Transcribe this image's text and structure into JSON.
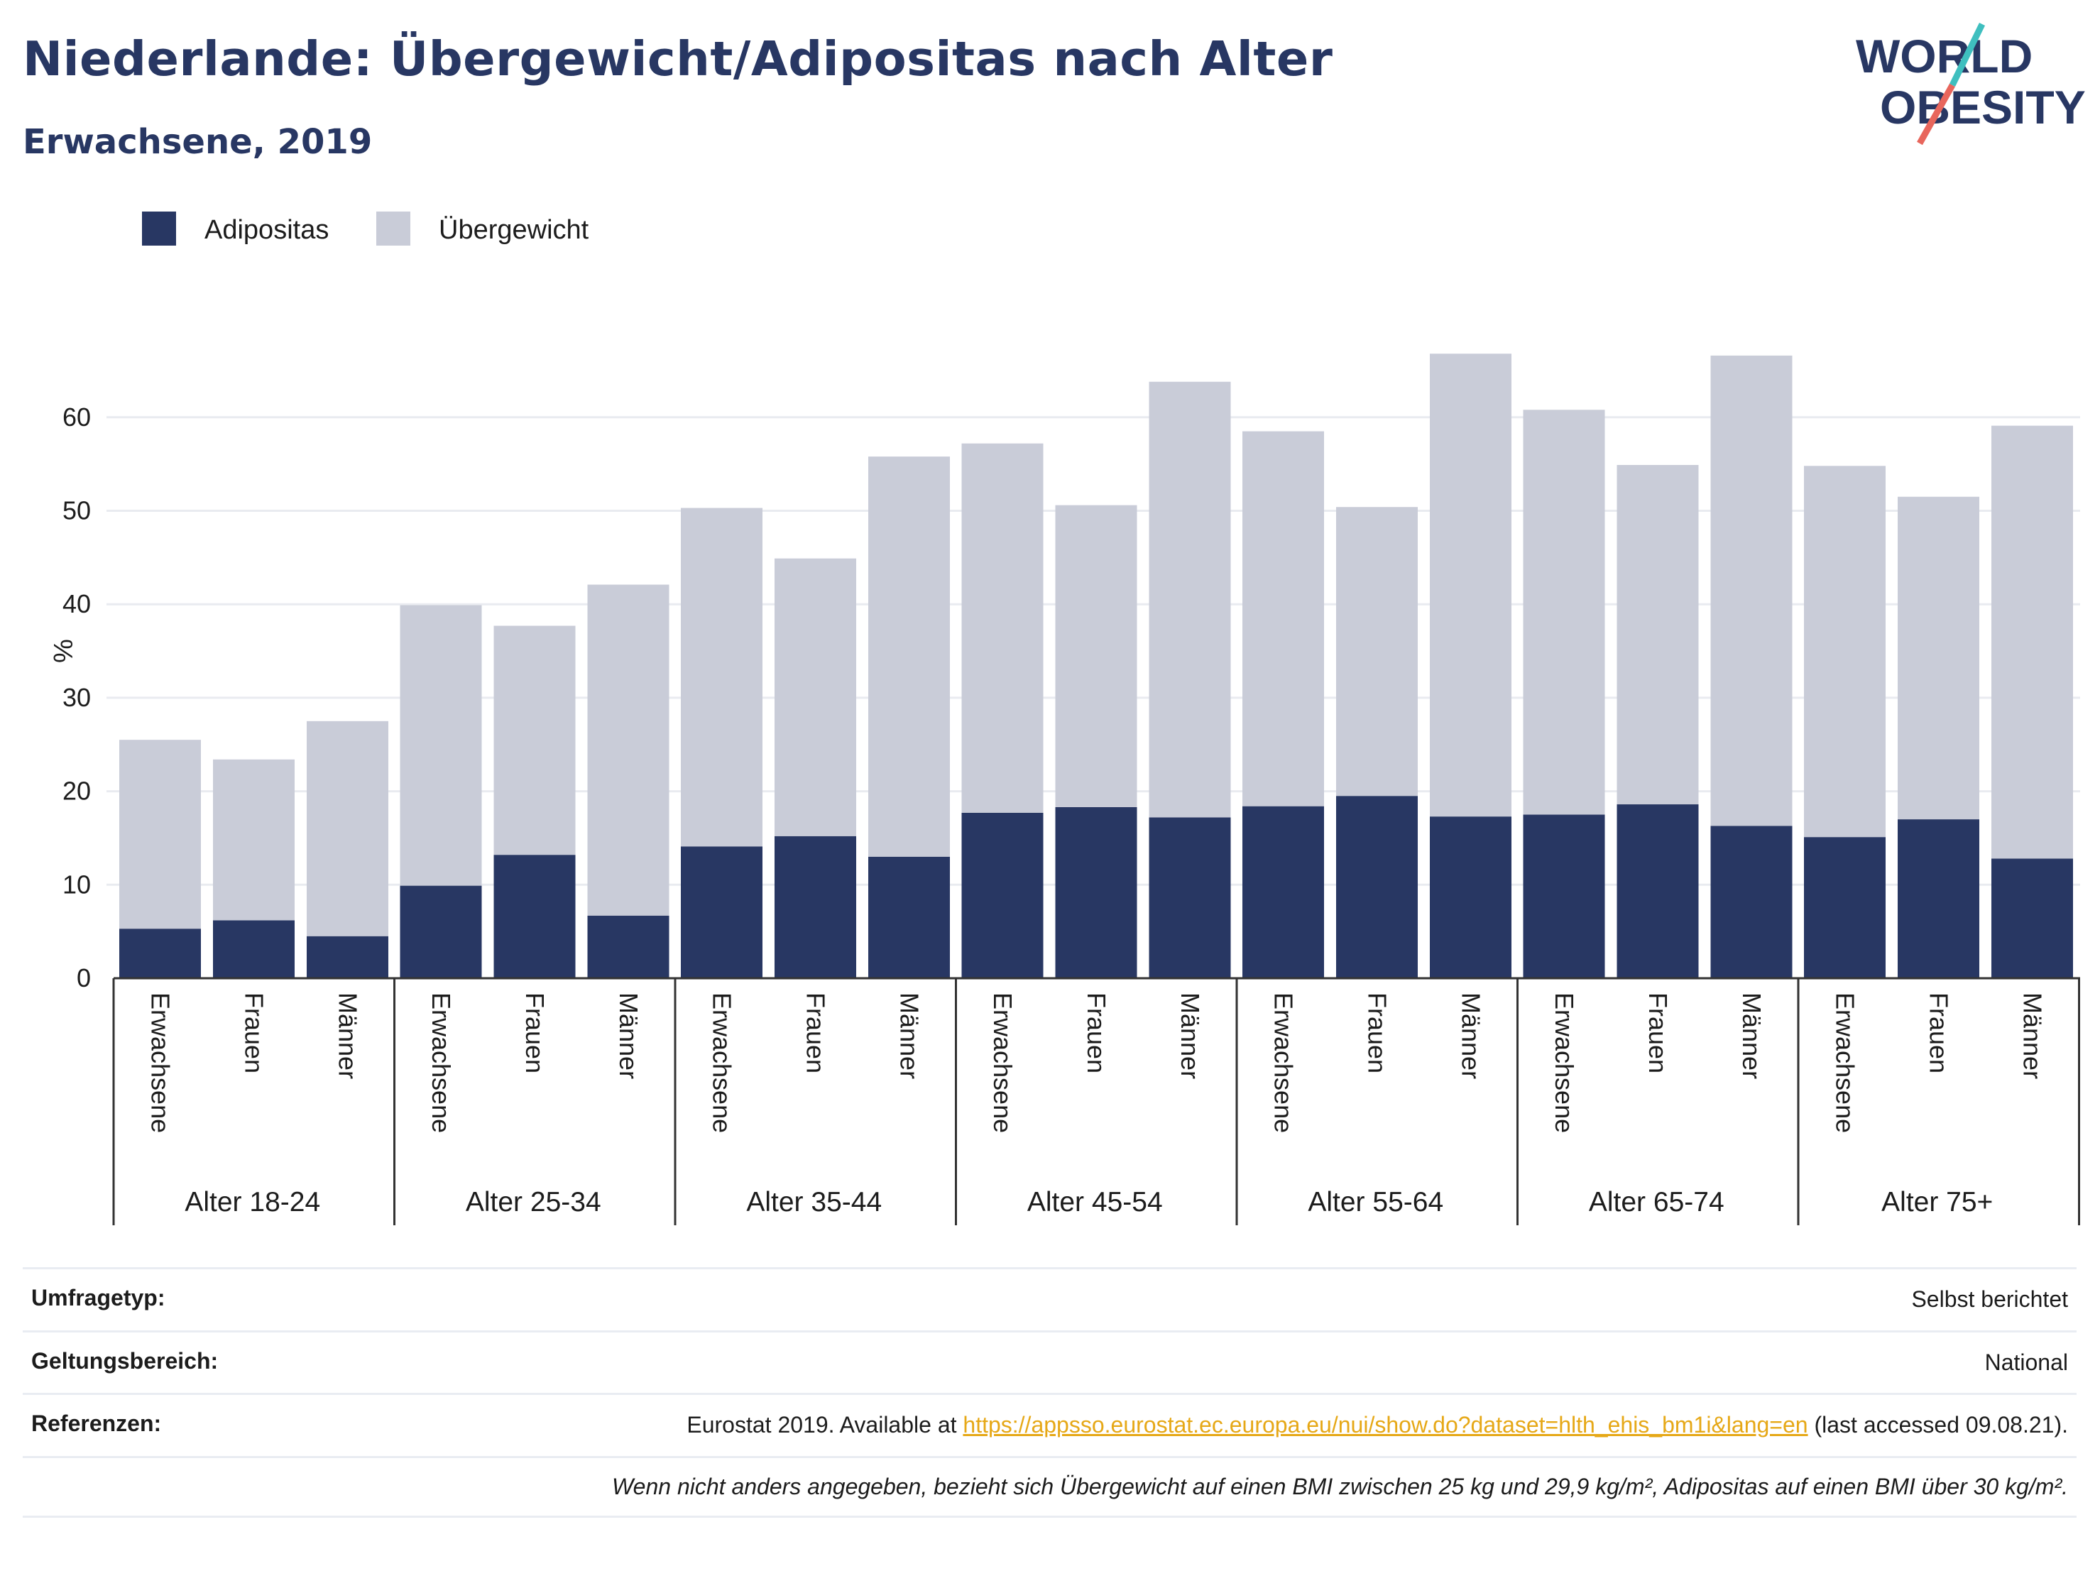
{
  "header": {
    "title": "Niederlande: Übergewicht/Adipositas nach Alter",
    "subtitle": "Erwachsene, 2019",
    "logo_line1": "WORLD",
    "logo_line2": "OBESITY"
  },
  "colors": {
    "adipositas": "#283763",
    "uebergewicht": "#c9ccd8",
    "accent_teal": "#3fbfbf",
    "accent_coral": "#e8665c"
  },
  "chart_data": {
    "type": "bar",
    "stacked": true,
    "title": "",
    "ylabel": "%",
    "ylim": [
      0,
      70
    ],
    "yticks": [
      0,
      10,
      20,
      30,
      40,
      50,
      60
    ],
    "grid": true,
    "legend_position": "top-left",
    "legend": [
      "Adipositas",
      "Übergewicht"
    ],
    "groups": [
      {
        "label": "Alter 18-24",
        "categories": [
          "Erwachsene",
          "Frauen",
          "Männer"
        ]
      },
      {
        "label": "Alter 25-34",
        "categories": [
          "Erwachsene",
          "Frauen",
          "Männer"
        ]
      },
      {
        "label": "Alter 35-44",
        "categories": [
          "Erwachsene",
          "Frauen",
          "Männer"
        ]
      },
      {
        "label": "Alter 45-54",
        "categories": [
          "Erwachsene",
          "Frauen",
          "Männer"
        ]
      },
      {
        "label": "Alter 55-64",
        "categories": [
          "Erwachsene",
          "Frauen",
          "Männer"
        ]
      },
      {
        "label": "Alter 65-74",
        "categories": [
          "Erwachsene",
          "Frauen",
          "Männer"
        ]
      },
      {
        "label": "Alter 75+",
        "categories": [
          "Erwachsene",
          "Frauen",
          "Männer"
        ]
      }
    ],
    "series": [
      {
        "name": "Adipositas",
        "values": [
          5.3,
          6.2,
          4.5,
          9.9,
          13.2,
          6.7,
          14.1,
          15.2,
          13.0,
          17.7,
          18.3,
          17.2,
          18.4,
          19.5,
          17.3,
          17.5,
          18.6,
          16.3,
          15.1,
          17.0,
          12.8
        ]
      },
      {
        "name": "Übergewicht",
        "values": [
          20.2,
          17.2,
          23.0,
          30.0,
          24.5,
          35.4,
          36.2,
          29.7,
          42.8,
          39.5,
          32.3,
          46.6,
          40.1,
          30.9,
          49.5,
          43.3,
          36.3,
          50.3,
          39.7,
          34.5,
          46.3
        ]
      }
    ]
  },
  "meta": {
    "survey_label": "Umfragetyp:",
    "survey_value": "Selbst berichtet",
    "scope_label": "Geltungsbereich:",
    "scope_value": "National",
    "ref_label": "Referenzen:",
    "ref_prefix": "Eurostat 2019. Available at ",
    "ref_link": "https://appsso.eurostat.ec.europa.eu/nui/show.do?dataset=hlth_ehis_bm1i&lang=en",
    "ref_suffix": " (last accessed 09.08.21).",
    "footnote": "Wenn nicht anders angegeben, bezieht sich Übergewicht auf einen BMI zwischen 25 kg und 29,9 kg/m², Adipositas auf einen BMI über 30 kg/m²."
  }
}
